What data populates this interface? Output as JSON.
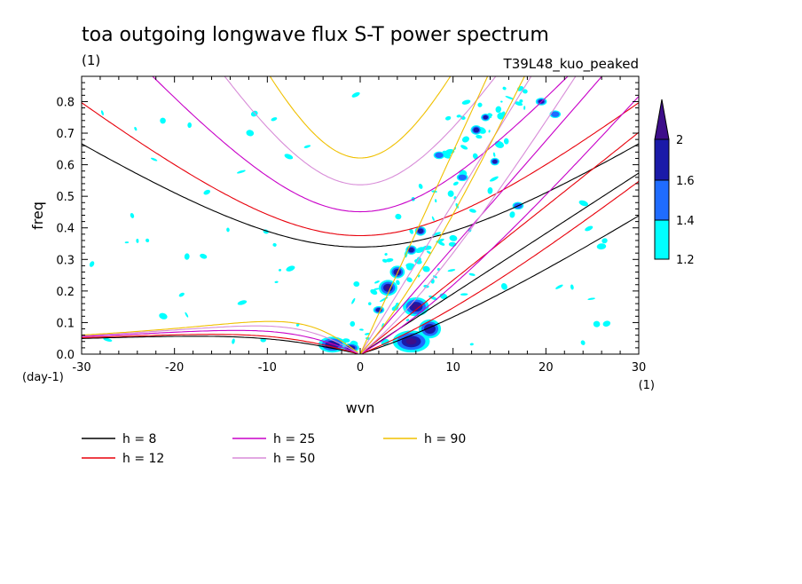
{
  "chart_data": {
    "type": "contour",
    "title": "toa outgoing longwave flux S-T power spectrum",
    "subtitle_left": "(1)",
    "subtitle_right": "T39L48_kuo_peaked",
    "xlabel": "wvn",
    "ylabel": "freq",
    "x_unit": "(1)",
    "y_unit": "(day-1)",
    "xlim": [
      -30,
      30
    ],
    "ylim": [
      0,
      0.88
    ],
    "xticks": [
      -30,
      -20,
      -10,
      0,
      10,
      20,
      30
    ],
    "xtick_labels": [
      "-30",
      "-20",
      "-10",
      "0",
      "10",
      "20",
      "30"
    ],
    "yticks": [
      0.0,
      0.1,
      0.2,
      0.3,
      0.4,
      0.5,
      0.6,
      0.7,
      0.8
    ],
    "ytick_labels": [
      "0.0",
      "0.1",
      "0.2",
      "0.3",
      "0.4",
      "0.5",
      "0.6",
      "0.7",
      "0.8"
    ],
    "colorbar": {
      "levels": [
        1.2,
        1.4,
        1.6,
        2
      ],
      "labels": [
        "1.2",
        "1.4",
        "1.6",
        "2"
      ],
      "colors": [
        "#00ffff",
        "#1f6cff",
        "#1a1aa8",
        "#3d0e8a"
      ]
    },
    "series": [
      {
        "name": "h =  8",
        "h": 8,
        "color": "#000000"
      },
      {
        "name": "h = 12",
        "h": 12,
        "color": "#e8000b"
      },
      {
        "name": "h = 25",
        "h": 25,
        "color": "#c800c8"
      },
      {
        "name": "h = 50",
        "h": 50,
        "color": "#d88cd8"
      },
      {
        "name": "h = 90",
        "h": 90,
        "color": "#f0c000"
      }
    ],
    "blobs": [
      {
        "x": 5.5,
        "y": 0.04,
        "level": 3,
        "r": 2.0,
        "ry": 0.035
      },
      {
        "x": 6.0,
        "y": 0.15,
        "level": 3,
        "r": 1.4,
        "ry": 0.03
      },
      {
        "x": 3.0,
        "y": 0.21,
        "level": 3,
        "r": 1.0,
        "ry": 0.025
      },
      {
        "x": 4.0,
        "y": 0.26,
        "level": 3,
        "r": 0.8,
        "ry": 0.02
      },
      {
        "x": 5.5,
        "y": 0.33,
        "level": 2,
        "r": 0.6,
        "ry": 0.015
      },
      {
        "x": 6.5,
        "y": 0.39,
        "level": 2,
        "r": 0.6,
        "ry": 0.015
      },
      {
        "x": 2.0,
        "y": 0.14,
        "level": 2,
        "r": 0.6,
        "ry": 0.012
      },
      {
        "x": -3.0,
        "y": 0.03,
        "level": 3,
        "r": 1.5,
        "ry": 0.025
      },
      {
        "x": -1.0,
        "y": 0.02,
        "level": 2,
        "r": 0.9,
        "ry": 0.015
      },
      {
        "x": 7.5,
        "y": 0.08,
        "level": 2,
        "r": 1.2,
        "ry": 0.03
      },
      {
        "x": 12.5,
        "y": 0.71,
        "level": 2,
        "r": 0.6,
        "ry": 0.015
      },
      {
        "x": 14.5,
        "y": 0.61,
        "level": 2,
        "r": 0.5,
        "ry": 0.012
      },
      {
        "x": 19.5,
        "y": 0.8,
        "level": 2,
        "r": 0.6,
        "ry": 0.012
      },
      {
        "x": 13.5,
        "y": 0.75,
        "level": 2,
        "r": 0.5,
        "ry": 0.012
      },
      {
        "x": 8.5,
        "y": 0.63,
        "level": 1,
        "r": 0.6,
        "ry": 0.012
      },
      {
        "x": 11.0,
        "y": 0.56,
        "level": 1,
        "r": 0.6,
        "ry": 0.012
      },
      {
        "x": 17.0,
        "y": 0.47,
        "level": 1,
        "r": 0.6,
        "ry": 0.012
      },
      {
        "x": 21.0,
        "y": 0.76,
        "level": 1,
        "r": 0.6,
        "ry": 0.012
      }
    ],
    "speckle_seed": 7,
    "speckle_count": 150
  },
  "legend_order": [
    0,
    2,
    4,
    1,
    3
  ]
}
